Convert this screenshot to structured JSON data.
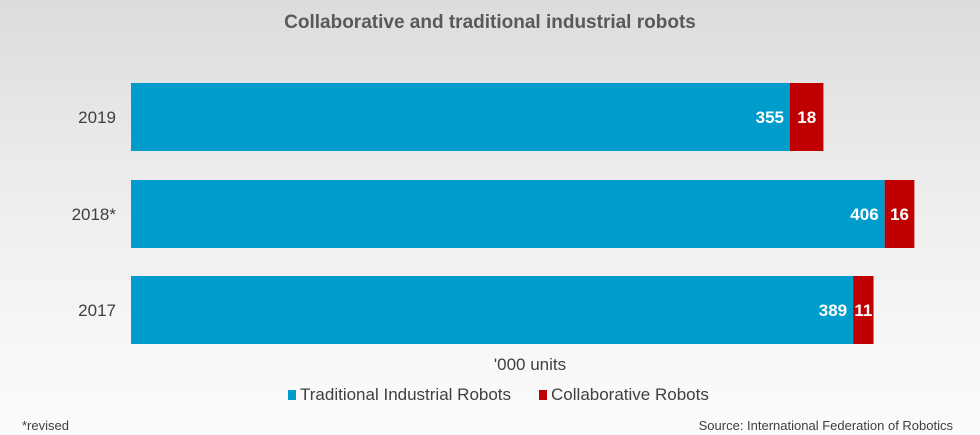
{
  "chart_data": {
    "type": "bar",
    "orientation": "horizontal",
    "stacked": true,
    "title": "Collaborative and traditional industrial robots",
    "xlabel": "'000 units",
    "categories": [
      "2019",
      "2018*",
      "2017"
    ],
    "series": [
      {
        "name": "Traditional Industrial Robots",
        "color": "#009ccc",
        "values": [
          355,
          406,
          389
        ]
      },
      {
        "name": "Collaborative Robots",
        "color": "#c00000",
        "values": [
          18,
          16,
          11
        ]
      }
    ],
    "xlim": [
      0,
      422
    ],
    "legend": "bottom"
  },
  "footnote": "*revised",
  "source": "Source: International Federation of Robotics"
}
